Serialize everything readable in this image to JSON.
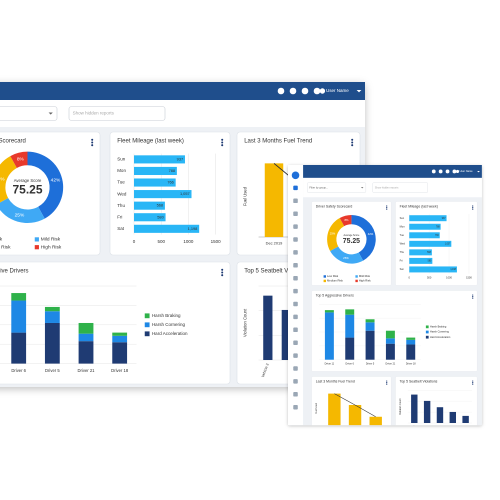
{
  "header": {
    "user_name": "User Name"
  },
  "toolbar": {
    "group_filter": "Filter by group...",
    "report_filter": "Show hidden reports"
  },
  "chart_data": [
    {
      "type": "pie",
      "title": "Driver Safety Scorecard",
      "center_label": "Average Score",
      "center_value": 75.25,
      "categories": [
        "Low Risk",
        "Mild Risk",
        "Medium Risk",
        "High Risk"
      ],
      "values": [
        42,
        25,
        25,
        8
      ],
      "value_labels": [
        "42%",
        "25%",
        "25%",
        "8%"
      ],
      "colors": [
        "#1e6fd9",
        "#3fa9f5",
        "#f5b800",
        "#e8392b"
      ]
    },
    {
      "type": "hbar",
      "title": "Fleet Mileage (last week)",
      "categories": [
        "Sun",
        "Mon",
        "Tue",
        "Wed",
        "Thu",
        "Fri",
        "Sat"
      ],
      "values": [
        937,
        788,
        766,
        1057,
        568,
        580,
        1198
      ],
      "value_labels": [
        "937",
        "788",
        "766",
        "1,057",
        "568",
        "580",
        "1,198"
      ],
      "color": "#29b6f6",
      "xlim": [
        0,
        1500
      ],
      "xticks": [
        0,
        500,
        1000,
        1500
      ],
      "grid": true
    },
    {
      "type": "bar",
      "title": "Last 3 Months Fuel Trend",
      "ylabel": "Fuel Used",
      "categories": [
        "Dec 2019",
        null,
        null
      ],
      "values": [
        95,
        62,
        28
      ],
      "color": "#f5b800",
      "line_color": "#333333"
    },
    {
      "type": "stacked",
      "title": "Top 5 Aggressive Drivers",
      "categories": [
        "Driver 11",
        "Driver 6",
        "Driver 5",
        "Driver 21",
        "Driver 18"
      ],
      "series": [
        {
          "name": "Harsh Braking",
          "color": "#2fb24a",
          "values": [
            3,
            7,
            4,
            10,
            3
          ]
        },
        {
          "name": "Harsh Cornering",
          "color": "#1e88e5",
          "values": [
            62,
            30,
            11,
            7,
            6
          ]
        },
        {
          "name": "Hard Acceleration",
          "color": "#1f3b73",
          "values": [
            0,
            29,
            38,
            21,
            20
          ]
        }
      ],
      "grid": true
    },
    {
      "type": "col",
      "title": "Top 5 Seatbelt Violations",
      "ylabel": "Violation Count",
      "categories": [
        "Vehicle 3",
        null,
        null,
        null,
        null
      ],
      "values": [
        36,
        28,
        20,
        14,
        9
      ],
      "color": "#1f3b73",
      "grid": true
    }
  ]
}
